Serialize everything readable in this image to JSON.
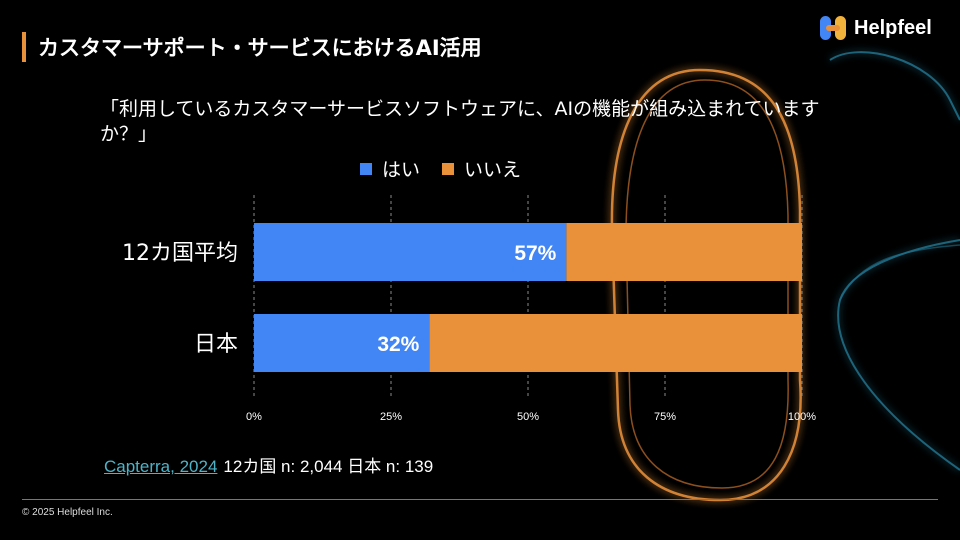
{
  "slide": {
    "title": "カスタマーサポート・サービスにおけるAI活用",
    "logo_text": "Helpfeel",
    "copyright": "© 2025 Helpfeel Inc."
  },
  "source": {
    "link_text": "Capterra, 2024",
    "note": "12カ国 n: 2,044 日本 n: 139"
  },
  "colors": {
    "yes": "#4285f4",
    "no": "#e8913a",
    "accent": "#e8913a",
    "link": "#4fb3c8"
  },
  "chart_data": {
    "type": "bar",
    "orientation": "horizontal",
    "stacked": true,
    "title": "「利用しているカスタマーサービスソフトウェアに、AIの機能が組み込まれていますか？」",
    "categories": [
      "12カ国平均",
      "日本"
    ],
    "series": [
      {
        "name": "はい",
        "values": [
          57,
          32
        ],
        "labels": [
          "57%",
          "32%"
        ]
      },
      {
        "name": "いいえ",
        "values": [
          43,
          68
        ]
      }
    ],
    "xlim": [
      0,
      100
    ],
    "xticks": [
      0,
      25,
      50,
      75,
      100
    ],
    "xtick_labels": [
      "0%",
      "25%",
      "50%",
      "75%",
      "100%"
    ],
    "grid": true,
    "legend": "top-center"
  }
}
